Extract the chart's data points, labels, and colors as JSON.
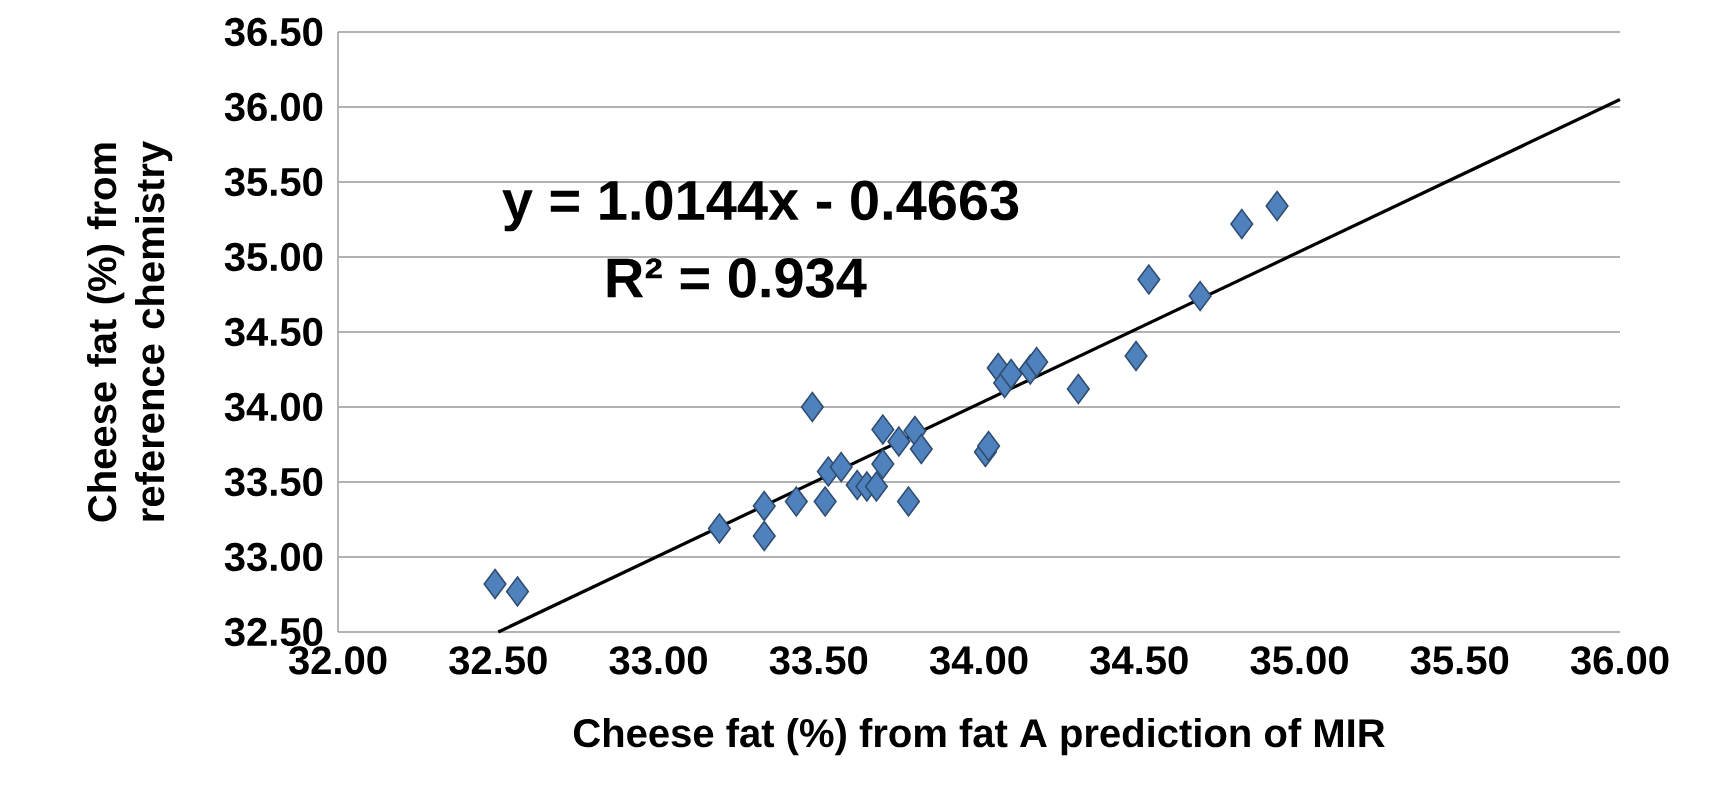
{
  "chart_data": {
    "type": "scatter",
    "xlabel": "Cheese fat (%) from fat A prediction of MIR",
    "ylabel": "Cheese fat (%) from reference chemistry",
    "annotations": [
      "y = 1.0144x - 0.4663",
      "R² = 0.934"
    ],
    "xlim": [
      32,
      36
    ],
    "ylim": [
      32.5,
      36.5
    ],
    "xticks": [
      {
        "value": 32,
        "label": "32.00"
      },
      {
        "value": 32.5,
        "label": "32.50"
      },
      {
        "value": 33,
        "label": "33.00"
      },
      {
        "value": 33.5,
        "label": "33.50"
      },
      {
        "value": 34,
        "label": "34.00"
      },
      {
        "value": 34.5,
        "label": "34.50"
      },
      {
        "value": 35,
        "label": "35.00"
      },
      {
        "value": 35.5,
        "label": "35.50"
      },
      {
        "value": 36,
        "label": "36.00"
      }
    ],
    "yticks": [
      {
        "value": 32.5,
        "label": "32.50"
      },
      {
        "value": 33,
        "label": "33.00"
      },
      {
        "value": 33.5,
        "label": "33.50"
      },
      {
        "value": 34,
        "label": "34.00"
      },
      {
        "value": 34.5,
        "label": "34.50"
      },
      {
        "value": 35,
        "label": "35.00"
      },
      {
        "value": 35.5,
        "label": "35.50"
      },
      {
        "value": 36,
        "label": "36.00"
      },
      {
        "value": 36.5,
        "label": "36.50"
      }
    ],
    "grid": "y",
    "series": [
      {
        "marker": "diamond",
        "color": "#4f81bd",
        "x": [
          32.49,
          32.56,
          33.19,
          33.33,
          33.33,
          33.43,
          33.48,
          33.52,
          33.53,
          33.57,
          33.62,
          33.65,
          33.68,
          33.7,
          33.7,
          33.75,
          33.78,
          33.8,
          33.82,
          34.02,
          34.03,
          34.06,
          34.08,
          34.1,
          34.16,
          34.18,
          34.31,
          34.49,
          34.53,
          34.69,
          34.82,
          34.93
        ],
        "values": [
          32.82,
          32.77,
          33.19,
          33.34,
          33.14,
          33.37,
          34.0,
          33.37,
          33.57,
          33.6,
          33.48,
          33.47,
          33.47,
          33.85,
          33.62,
          33.77,
          33.37,
          33.84,
          33.72,
          33.7,
          33.74,
          34.26,
          34.16,
          34.22,
          34.25,
          34.3,
          34.12,
          34.34,
          34.85,
          34.74,
          35.22,
          35.34
        ]
      },
      {
        "type": "line",
        "marker": "none",
        "line_style": "solid",
        "color": "#000000",
        "x": [
          32.5,
          36.0
        ],
        "values": [
          32.5,
          36.05
        ]
      }
    ]
  }
}
